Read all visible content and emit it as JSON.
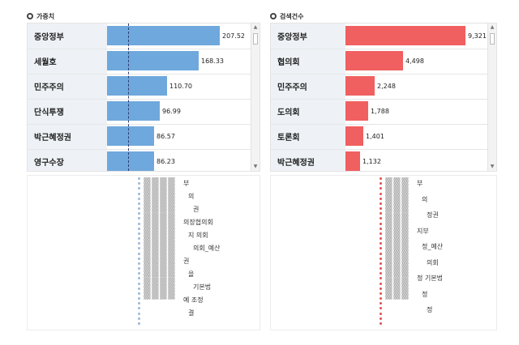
{
  "left_panel": {
    "title": "가중치",
    "bar_color": "#6fa8dc",
    "rows": [
      {
        "label": "중앙정부",
        "value": "207.52",
        "fraction": 1.0
      },
      {
        "label": "세월호",
        "value": "168.33",
        "fraction": 0.811
      },
      {
        "label": "민주주의",
        "value": "110.70",
        "fraction": 0.533
      },
      {
        "label": "단식투쟁",
        "value": "96.99",
        "fraction": 0.467
      },
      {
        "label": "박근혜정권",
        "value": "86.57",
        "fraction": 0.417
      },
      {
        "label": "영구수장",
        "value": "86.23",
        "fraction": 0.416
      }
    ],
    "threshold_fraction": 0.19
  },
  "right_panel": {
    "title": "검색건수",
    "bar_color": "#f06060",
    "rows": [
      {
        "label": "중앙정부",
        "value": "9,321",
        "fraction": 1.0
      },
      {
        "label": "협의회",
        "value": "4,498",
        "fraction": 0.483
      },
      {
        "label": "민주주의",
        "value": "2,248",
        "fraction": 0.241
      },
      {
        "label": "도의회",
        "value": "1,788",
        "fraction": 0.192
      },
      {
        "label": "토론회",
        "value": "1,401",
        "fraction": 0.15
      },
      {
        "label": "박근혜정권",
        "value": "1,132",
        "fraction": 0.121
      }
    ],
    "threshold_fraction": 0.0
  },
  "left_timeseries": {
    "dot_color": "#9ab7d8",
    "keywords": [
      "부",
      "의",
      "권",
      "의장협의회",
      "지 의회",
      "의회_예산",
      "권",
      "을",
      "기본법",
      "예 조정",
      "결"
    ]
  },
  "right_timeseries": {
    "dot_color": "#e05050",
    "keywords": [
      "부",
      "의",
      "정권",
      "지부",
      "정_예산",
      "의회",
      "정 기본법",
      "정",
      "정"
    ]
  }
}
